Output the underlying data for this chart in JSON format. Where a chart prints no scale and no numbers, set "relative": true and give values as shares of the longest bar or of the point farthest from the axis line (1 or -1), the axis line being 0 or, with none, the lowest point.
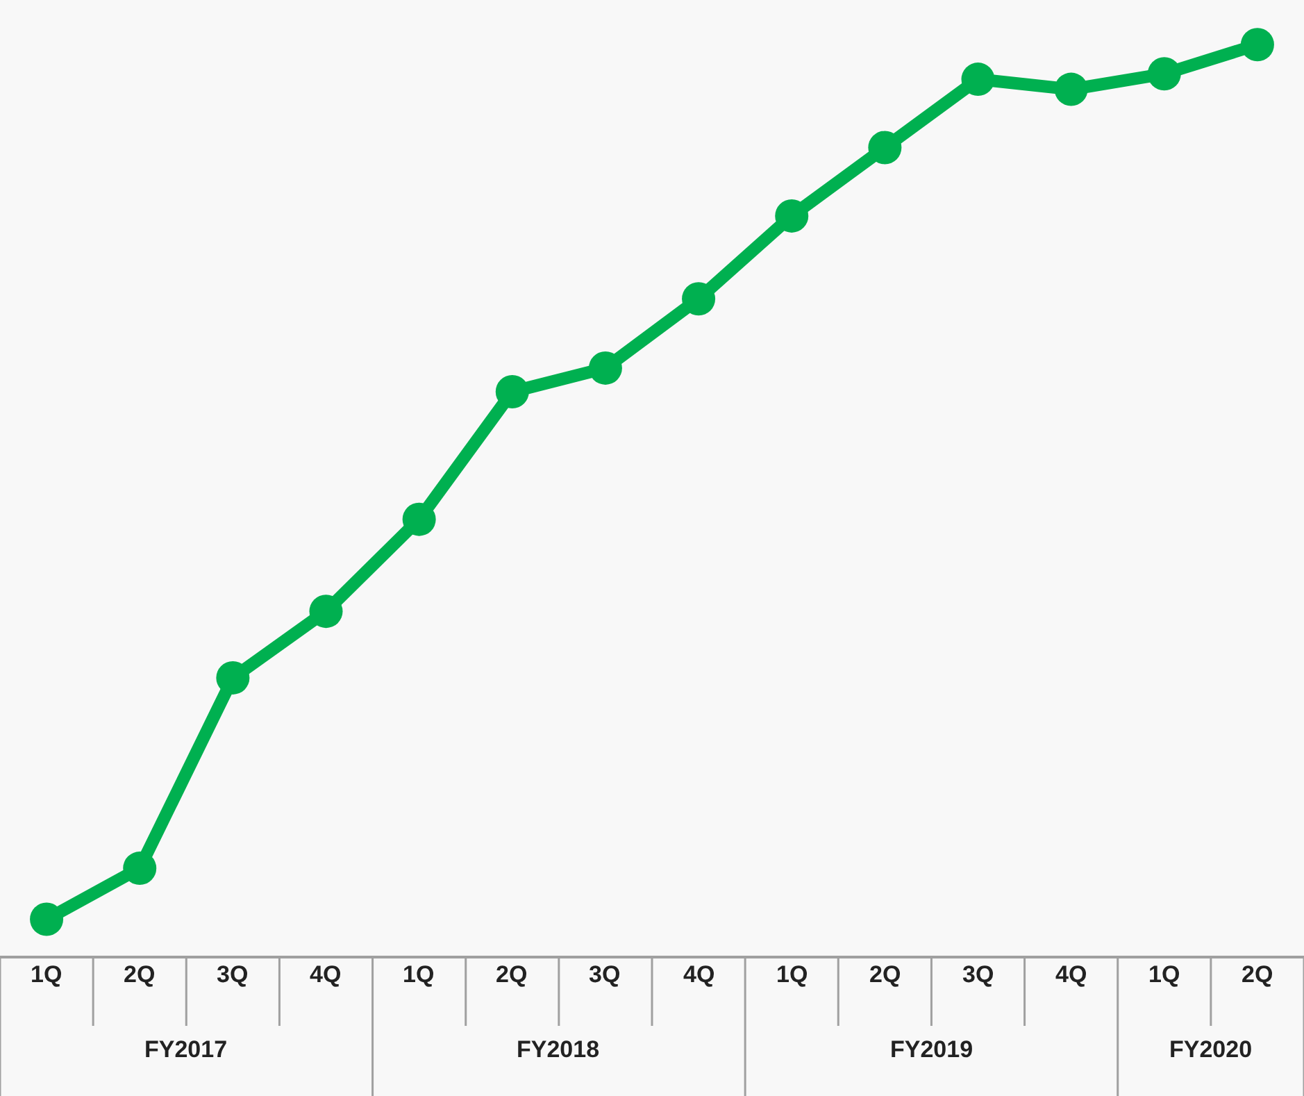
{
  "chart_data": {
    "type": "line",
    "relative": true,
    "marker": "circle",
    "line_style": "solid",
    "categories": [
      "1Q",
      "2Q",
      "3Q",
      "4Q",
      "1Q",
      "2Q",
      "3Q",
      "4Q",
      "1Q",
      "2Q",
      "3Q",
      "4Q",
      "1Q",
      "2Q"
    ],
    "series": [
      {
        "color": "#00b050",
        "values": [
          0.04,
          0.096,
          0.305,
          0.378,
          0.479,
          0.619,
          0.645,
          0.721,
          0.812,
          0.887,
          0.962,
          0.951,
          0.968,
          1.0
        ]
      }
    ],
    "annotations": [
      "FY2017",
      "FY2018",
      "FY2019",
      "FY2020"
    ]
  }
}
